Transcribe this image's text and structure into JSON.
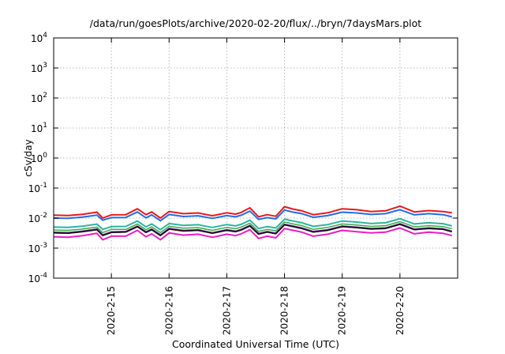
{
  "chart_data": {
    "type": "line",
    "title": "/data/run/goesPlots/archive/2020-02-20/flux/../bryn/7daysMars.plot",
    "xlabel": "Coordinated Universal Time (UTC)",
    "ylabel": "cSv/day",
    "yscale": "log",
    "ylim": [
      0.0001,
      10000
    ],
    "xlim": [
      0.0,
      7.0
    ],
    "grid": true,
    "y_ticks": [
      {
        "base": "10",
        "exp": "-4"
      },
      {
        "base": "10",
        "exp": "-3"
      },
      {
        "base": "10",
        "exp": "-2"
      },
      {
        "base": "10",
        "exp": "-1"
      },
      {
        "base": "10",
        "exp": "0"
      },
      {
        "base": "10",
        "exp": "1"
      },
      {
        "base": "10",
        "exp": "2"
      },
      {
        "base": "10",
        "exp": "3"
      },
      {
        "base": "10",
        "exp": "4"
      }
    ],
    "x_ticks": [
      {
        "label": "2020-2-15",
        "x": 1.0
      },
      {
        "label": "2020-2-16",
        "x": 2.0
      },
      {
        "label": "2020-2-17",
        "x": 3.0
      },
      {
        "label": "2020-2-18",
        "x": 4.0
      },
      {
        "label": "2020-2-19",
        "x": 5.0
      },
      {
        "label": "2020-2-20",
        "x": 6.0
      }
    ],
    "x": [
      0.0,
      0.25,
      0.5,
      0.75,
      0.85,
      1.0,
      1.25,
      1.45,
      1.6,
      1.7,
      1.85,
      2.0,
      2.25,
      2.5,
      2.75,
      3.0,
      3.15,
      3.25,
      3.4,
      3.55,
      3.7,
      3.85,
      4.0,
      4.15,
      4.3,
      4.5,
      4.75,
      5.0,
      5.25,
      5.5,
      5.75,
      6.0,
      6.25,
      6.5,
      6.75,
      6.9
    ],
    "series": [
      {
        "color": "#e8191b",
        "width": 2,
        "values": [
          0.0125,
          0.0122,
          0.0133,
          0.0158,
          0.01,
          0.0128,
          0.013,
          0.0205,
          0.013,
          0.016,
          0.01,
          0.0165,
          0.014,
          0.0148,
          0.012,
          0.015,
          0.0135,
          0.0155,
          0.022,
          0.011,
          0.013,
          0.0115,
          0.024,
          0.02,
          0.0175,
          0.013,
          0.015,
          0.0205,
          0.019,
          0.0165,
          0.0175,
          0.025,
          0.016,
          0.0178,
          0.0165,
          0.015
        ]
      },
      {
        "color": "#1f6ee8",
        "width": 2,
        "values": [
          0.01,
          0.0098,
          0.0108,
          0.0125,
          0.0085,
          0.0104,
          0.0105,
          0.016,
          0.0102,
          0.0128,
          0.0082,
          0.0132,
          0.0113,
          0.0119,
          0.0098,
          0.0121,
          0.011,
          0.0124,
          0.017,
          0.009,
          0.0104,
          0.0094,
          0.0185,
          0.0158,
          0.014,
          0.0106,
          0.0121,
          0.0158,
          0.0148,
          0.0132,
          0.014,
          0.019,
          0.0128,
          0.014,
          0.013,
          0.011
        ]
      },
      {
        "color": "#2bb5a0",
        "width": 2,
        "values": [
          0.005,
          0.0049,
          0.0054,
          0.0063,
          0.0042,
          0.0052,
          0.0053,
          0.008,
          0.0051,
          0.0064,
          0.0041,
          0.0066,
          0.0057,
          0.006,
          0.0049,
          0.0061,
          0.0055,
          0.0062,
          0.0085,
          0.0045,
          0.0052,
          0.0047,
          0.0092,
          0.008,
          0.007,
          0.0053,
          0.0061,
          0.008,
          0.0074,
          0.0066,
          0.007,
          0.0095,
          0.0064,
          0.007,
          0.0065,
          0.0055
        ]
      },
      {
        "color": "#3fa84a",
        "width": 1.5,
        "values": [
          0.004,
          0.0039,
          0.0043,
          0.005,
          0.0033,
          0.0042,
          0.0042,
          0.0064,
          0.0041,
          0.0051,
          0.0033,
          0.0053,
          0.0046,
          0.0048,
          0.0039,
          0.0049,
          0.0044,
          0.005,
          0.0068,
          0.0036,
          0.0042,
          0.0038,
          0.0074,
          0.0064,
          0.0056,
          0.0042,
          0.0049,
          0.0064,
          0.0059,
          0.0053,
          0.0056,
          0.0076,
          0.0051,
          0.0056,
          0.0052,
          0.0044
        ]
      },
      {
        "color": "#6a2a88",
        "width": 2.5,
        "values": [
          0.0033,
          0.0032,
          0.0036,
          0.0042,
          0.0027,
          0.0034,
          0.0035,
          0.0053,
          0.0034,
          0.0042,
          0.0027,
          0.0044,
          0.0038,
          0.004,
          0.0032,
          0.004,
          0.0036,
          0.0041,
          0.0056,
          0.003,
          0.0035,
          0.0031,
          0.0061,
          0.0053,
          0.0046,
          0.0035,
          0.004,
          0.0053,
          0.0049,
          0.0044,
          0.0046,
          0.0063,
          0.0042,
          0.0046,
          0.0043,
          0.0036
        ]
      },
      {
        "color": "#111111",
        "width": 1.5,
        "values": [
          0.0032,
          0.0031,
          0.0035,
          0.0041,
          0.0026,
          0.0033,
          0.0034,
          0.0052,
          0.0033,
          0.0041,
          0.0026,
          0.0043,
          0.0037,
          0.0039,
          0.0031,
          0.0039,
          0.0035,
          0.004,
          0.0055,
          0.0029,
          0.0034,
          0.003,
          0.006,
          0.0052,
          0.0045,
          0.0034,
          0.0039,
          0.0052,
          0.0048,
          0.0043,
          0.0045,
          0.0062,
          0.0041,
          0.0045,
          0.0042,
          0.0035
        ]
      },
      {
        "color": "#e81fc4",
        "width": 2,
        "values": [
          0.0024,
          0.0023,
          0.0026,
          0.0031,
          0.0019,
          0.0025,
          0.0025,
          0.0039,
          0.0024,
          0.003,
          0.0019,
          0.0032,
          0.0027,
          0.0029,
          0.0023,
          0.0029,
          0.0026,
          0.003,
          0.0041,
          0.0021,
          0.0025,
          0.0022,
          0.0045,
          0.0039,
          0.0034,
          0.0025,
          0.0029,
          0.0039,
          0.0035,
          0.0032,
          0.0034,
          0.0047,
          0.003,
          0.0034,
          0.0031,
          0.0026
        ]
      }
    ]
  }
}
